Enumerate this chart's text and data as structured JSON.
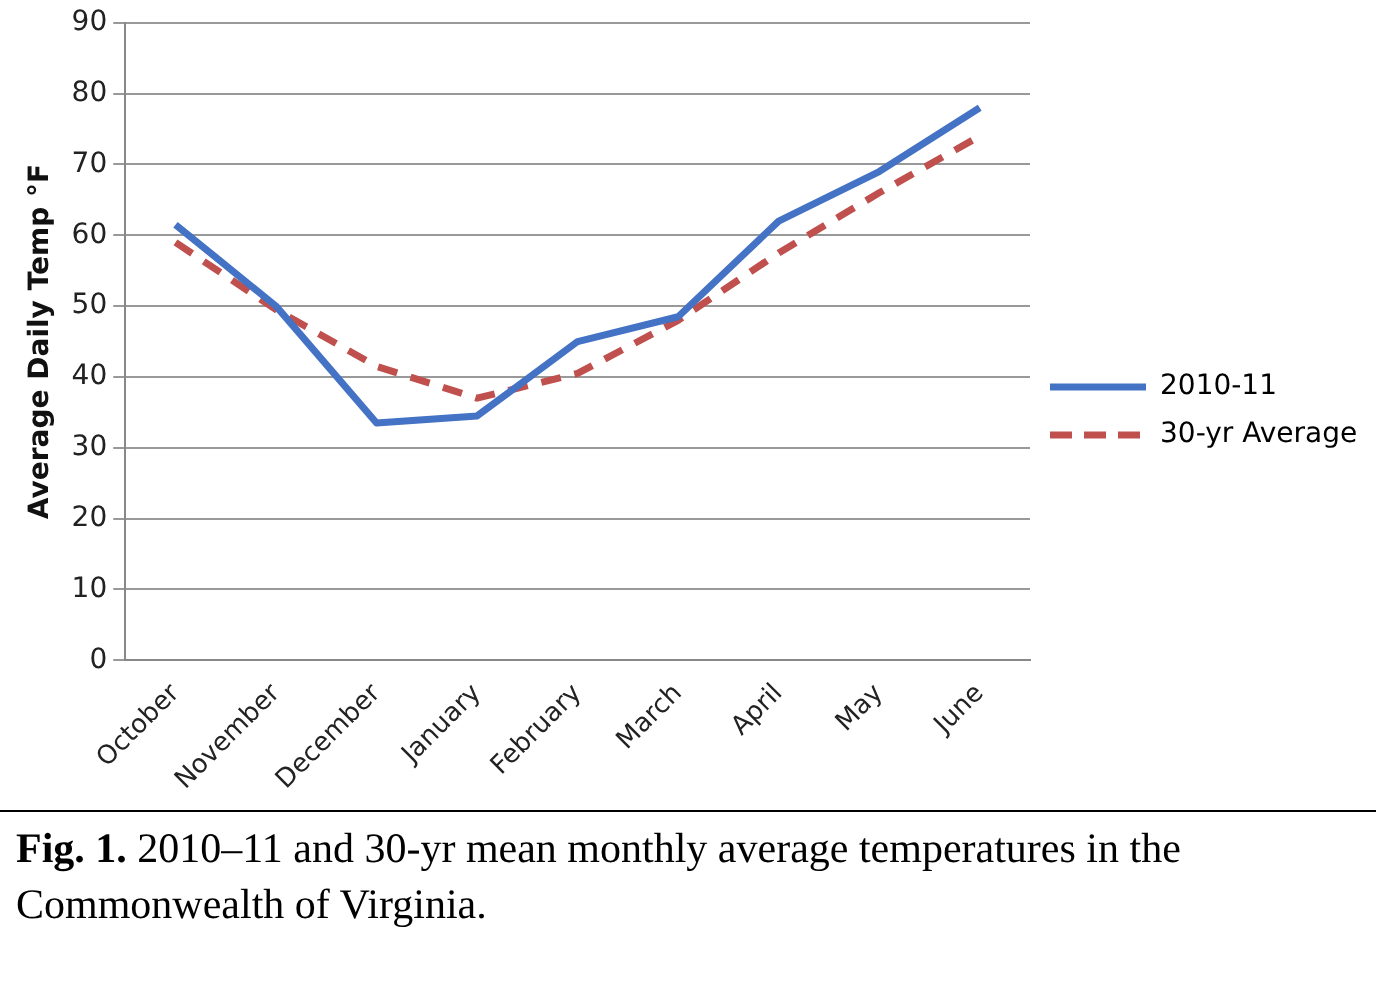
{
  "chart_data": {
    "type": "line",
    "ylabel": "Average Daily Temp °F",
    "categories": [
      "October",
      "November",
      "December",
      "January",
      "February",
      "March",
      "April",
      "May",
      "June"
    ],
    "series": [
      {
        "name": "2010-11",
        "color": "#4472c4",
        "line_style": "solid",
        "values": [
          61.5,
          50,
          33.5,
          34.5,
          45,
          48.5,
          62,
          69,
          78
        ]
      },
      {
        "name": "30-yr Average",
        "color": "#c0504d",
        "line_style": "dashed",
        "values": [
          59,
          49.5,
          41.5,
          37,
          40.5,
          48,
          57.5,
          66,
          74
        ]
      }
    ],
    "ylim": [
      0,
      90
    ],
    "yticks": [
      0,
      10,
      20,
      30,
      40,
      50,
      60,
      70,
      80,
      90
    ],
    "grid": "y",
    "legend": "right",
    "marker": "none",
    "annotations": [
      "Fig. 1. 2010–11 and 30-yr mean monthly average temperatures in the Commonwealth of Virginia."
    ]
  }
}
